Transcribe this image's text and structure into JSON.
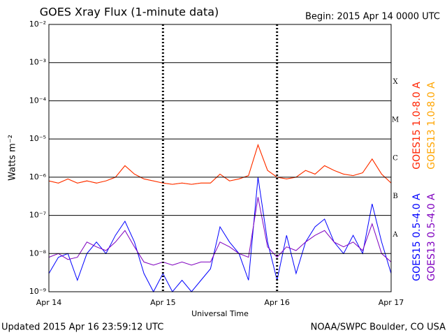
{
  "chart_data": {
    "type": "line",
    "title": "GOES Xray Flux (1-minute data)",
    "subtitle": "Begin:  2015 Apr 14 0000 UTC",
    "x_label": "Universal Time",
    "y_label": "Watts m⁻²",
    "footer_left": "Updated 2015 Apr 16 23:59:12 UTC",
    "footer_right": "NOAA/SWPC Boulder, CO USA",
    "flare_classes": [
      "A",
      "B",
      "C",
      "M",
      "X"
    ],
    "log_y": true,
    "grid": true,
    "x": [
      0,
      2,
      4,
      6,
      8,
      10,
      12,
      14,
      16,
      18,
      20,
      22,
      24,
      26,
      28,
      30,
      32,
      34,
      36,
      38,
      40,
      42,
      44,
      46,
      48,
      50,
      52,
      54,
      56,
      58,
      60,
      62,
      64,
      66,
      68,
      70,
      72
    ],
    "xlim": [
      0,
      72
    ],
    "xticks": [
      {
        "value": 0,
        "label": "Apr 14"
      },
      {
        "value": 24,
        "label": "Apr 15"
      },
      {
        "value": 48,
        "label": "Apr 16"
      },
      {
        "value": 72,
        "label": "Apr 17"
      }
    ],
    "ylim": [
      1e-09,
      0.01
    ],
    "yticks": [
      {
        "value": 1e-09,
        "label": "10⁻⁹"
      },
      {
        "value": 1e-08,
        "label": "10⁻⁸"
      },
      {
        "value": 1e-07,
        "label": "10⁻⁷"
      },
      {
        "value": 1e-06,
        "label": "10⁻⁶"
      },
      {
        "value": 1e-05,
        "label": "10⁻⁵"
      },
      {
        "value": 0.0001,
        "label": "10⁻⁴"
      },
      {
        "value": 0.001,
        "label": "10⁻³"
      },
      {
        "value": 0.01,
        "label": "10⁻²"
      }
    ],
    "series": [
      {
        "name": "GOES13 1.0-8.0 A",
        "color": "#ffa500",
        "values": [
          8e-07,
          7e-07,
          9e-07,
          7e-07,
          8e-07,
          7e-07,
          8e-07,
          1e-06,
          2e-06,
          1.2e-06,
          9e-07,
          8e-07,
          7e-07,
          6.5e-07,
          7e-07,
          6.5e-07,
          7e-07,
          7e-07,
          1.2e-06,
          8e-07,
          9e-07,
          1.1e-06,
          7e-06,
          1.5e-06,
          1e-06,
          9e-07,
          1e-06,
          1.5e-06,
          1.2e-06,
          2e-06,
          1.5e-06,
          1.2e-06,
          1.1e-06,
          1.3e-06,
          3e-06,
          1.2e-06,
          7e-07
        ]
      },
      {
        "name": "GOES15 1.0-8.0 A",
        "color": "#ff2200",
        "values": [
          8e-07,
          7e-07,
          9e-07,
          7e-07,
          8e-07,
          7e-07,
          8e-07,
          1e-06,
          2e-06,
          1.2e-06,
          9e-07,
          8e-07,
          7e-07,
          6.5e-07,
          7e-07,
          6.5e-07,
          7e-07,
          7e-07,
          1.2e-06,
          8e-07,
          9e-07,
          1.1e-06,
          7e-06,
          1.5e-06,
          1e-06,
          9e-07,
          1e-06,
          1.5e-06,
          1.2e-06,
          2e-06,
          1.5e-06,
          1.2e-06,
          1.1e-06,
          1.3e-06,
          3e-06,
          1.2e-06,
          7e-07
        ]
      },
      {
        "name": "GOES15 0.5-4.0 A",
        "color": "#0000ff",
        "values": [
          3e-09,
          8e-09,
          1e-08,
          2e-09,
          1e-08,
          2e-08,
          1e-08,
          3e-08,
          7e-08,
          2e-08,
          3e-09,
          1e-09,
          3e-09,
          1e-09,
          2e-09,
          1e-09,
          2e-09,
          4e-09,
          5e-08,
          2e-08,
          1e-08,
          2e-09,
          1e-06,
          2e-08,
          2e-09,
          3e-08,
          3e-09,
          2e-08,
          5e-08,
          8e-08,
          2e-08,
          1e-08,
          3e-08,
          1e-08,
          2e-07,
          2e-08,
          3e-09
        ]
      },
      {
        "name": "GOES13 0.5-4.0 A",
        "color": "#7f00bf",
        "values": [
          8e-09,
          1e-08,
          7e-09,
          8e-09,
          2e-08,
          1.5e-08,
          1.2e-08,
          2e-08,
          4e-08,
          1.5e-08,
          6e-09,
          5e-09,
          6e-09,
          5e-09,
          6e-09,
          5e-09,
          6e-09,
          6e-09,
          2e-08,
          1.5e-08,
          1e-08,
          8e-09,
          3e-07,
          1.5e-08,
          8e-09,
          1.5e-08,
          1.2e-08,
          2e-08,
          3e-08,
          4e-08,
          2e-08,
          1.5e-08,
          2e-08,
          1.2e-08,
          6e-08,
          1e-08,
          6e-09
        ]
      }
    ]
  }
}
